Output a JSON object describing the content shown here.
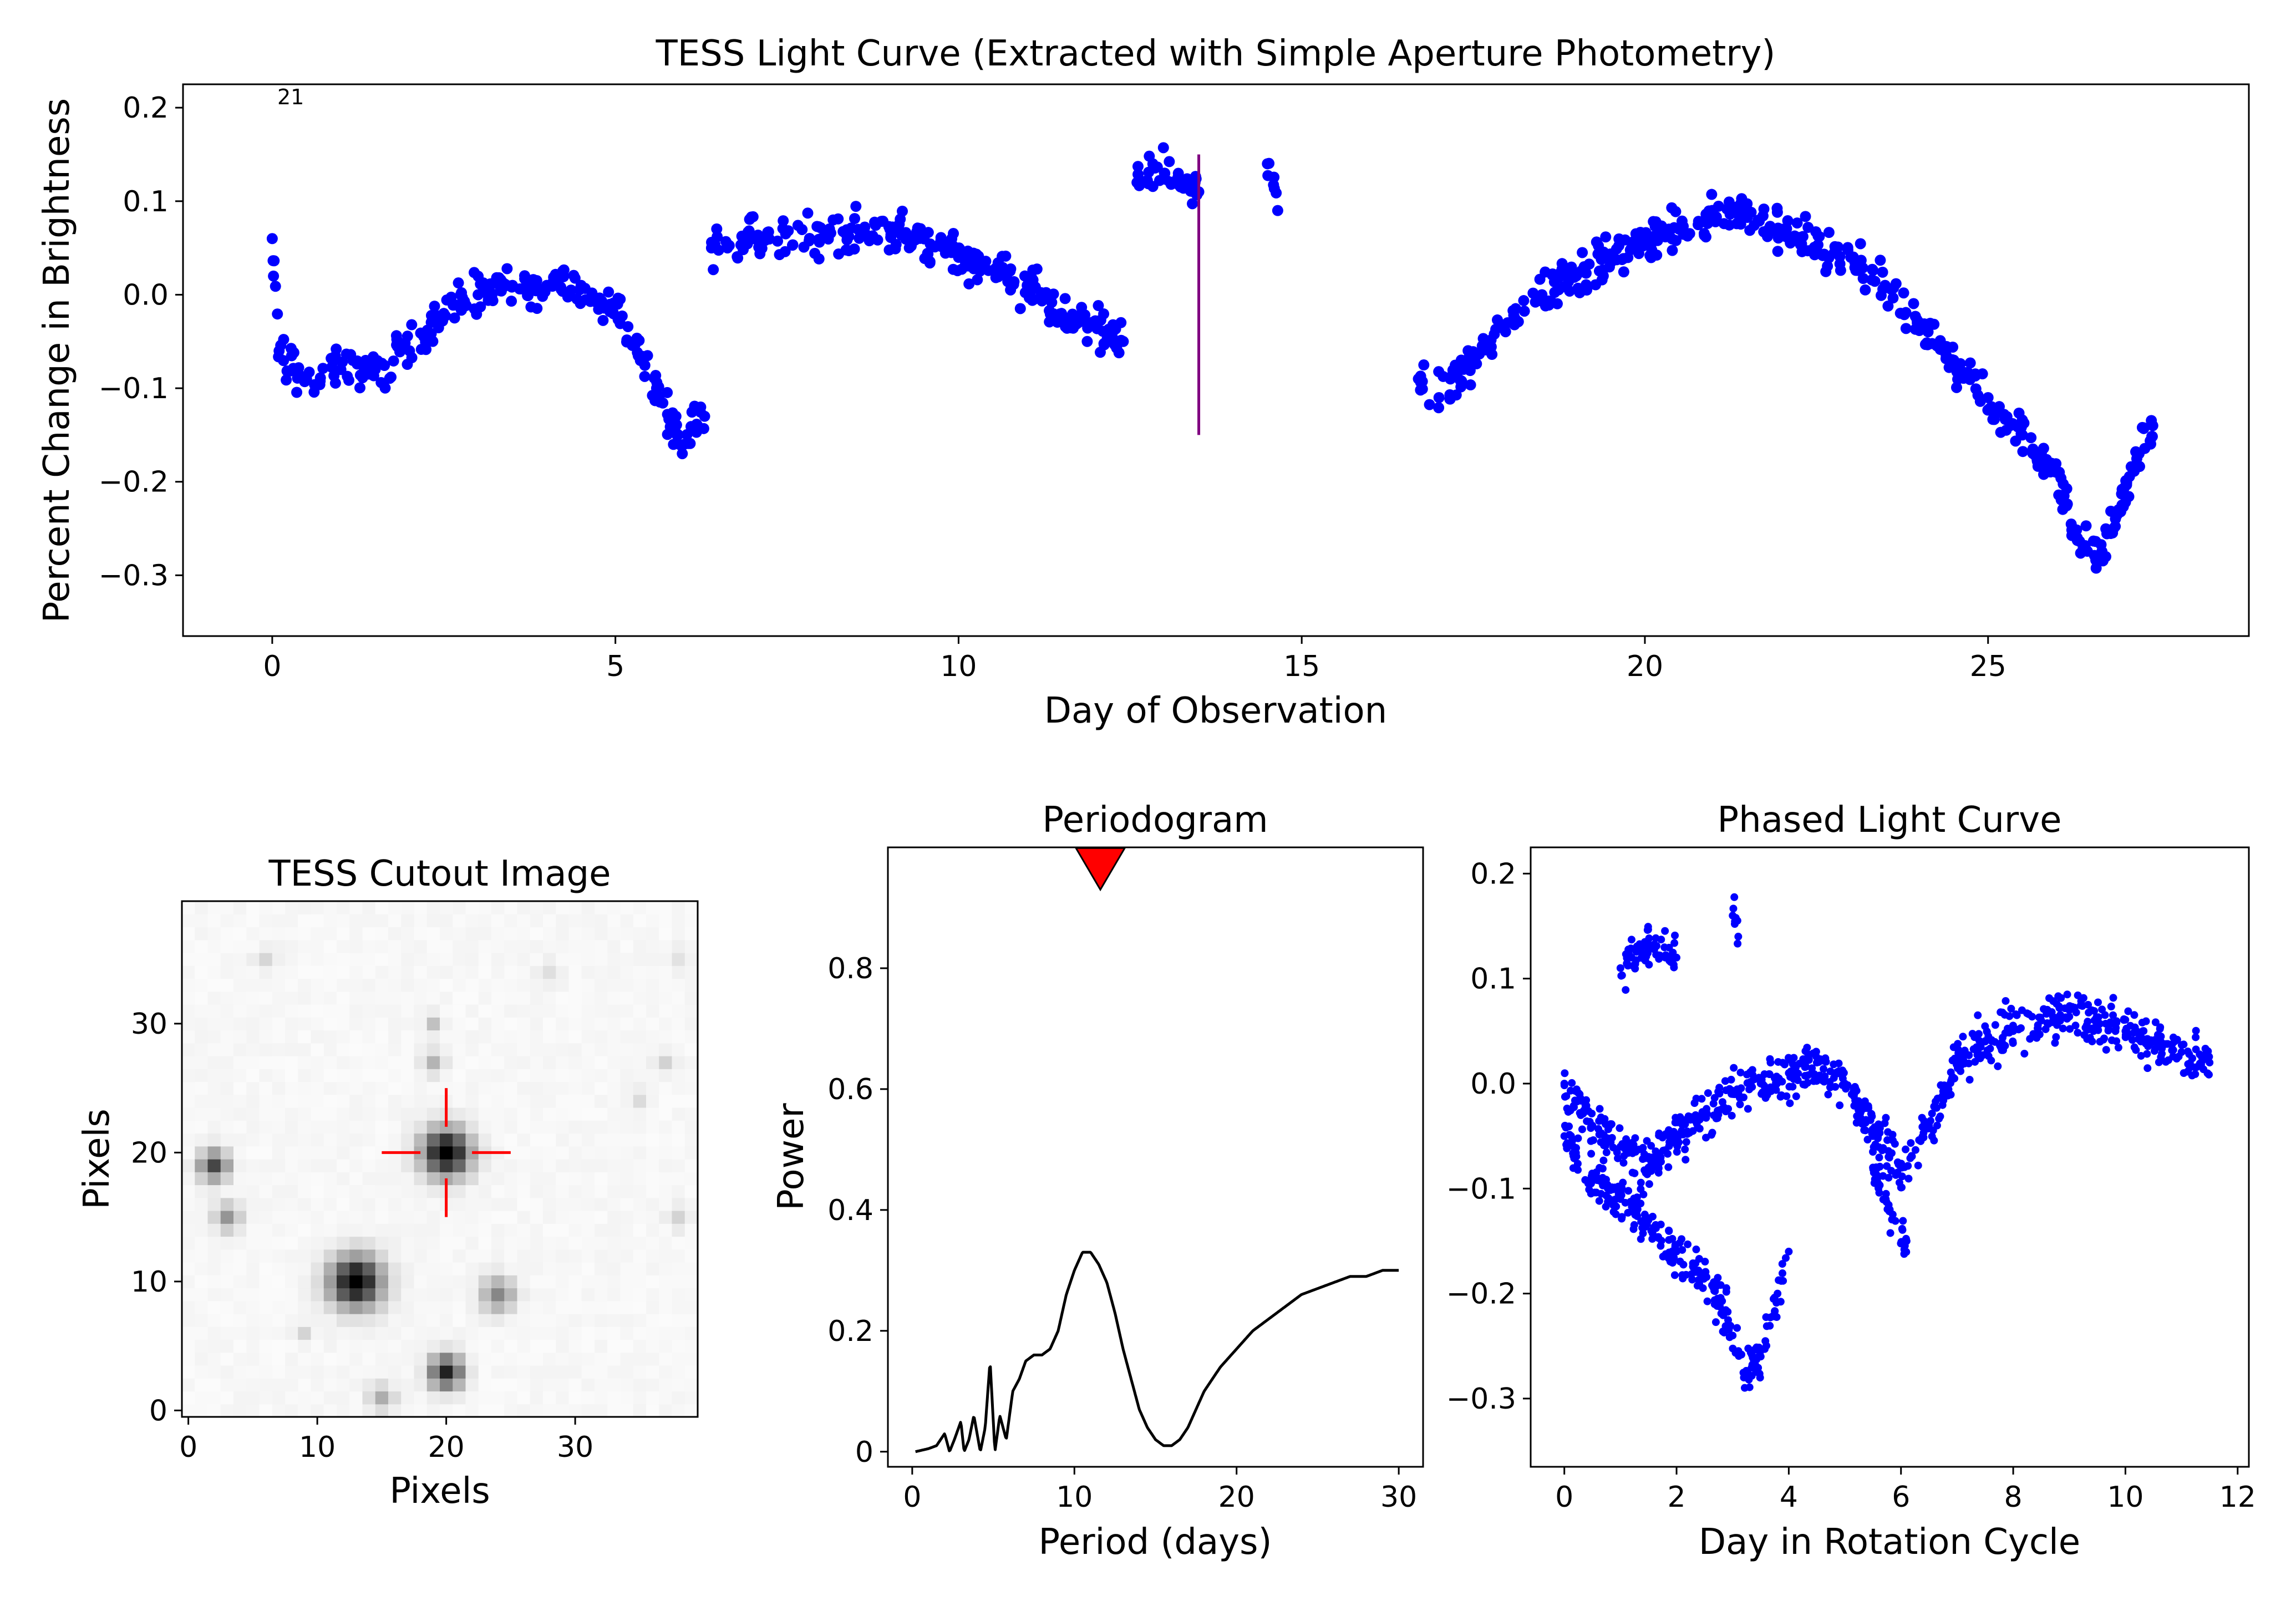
{
  "chart_data": [
    {
      "type": "scatter",
      "title": "TESS Light Curve (Extracted with Simple Aperture Photometry)",
      "xlabel": "Day of Observation",
      "ylabel": "Percent Change in Brightness",
      "xlim": [
        -1.3,
        28.8
      ],
      "ylim": [
        -0.365,
        0.225
      ],
      "xticks": [
        0,
        5,
        10,
        15,
        20,
        25
      ],
      "yticks": [
        0.2,
        0.1,
        0.0,
        -0.1,
        -0.2,
        -0.3
      ],
      "ytick_labels": [
        "0.2",
        "0.1",
        "0.0",
        "−0.1",
        "−0.2",
        "−0.3"
      ],
      "annotation": "21",
      "marker_color": "#0000ff",
      "segments": [
        {
          "x": [
            0.0,
            0.1,
            0.5,
            1.0,
            1.5,
            2.0,
            2.5,
            3.0,
            3.5,
            4.0,
            4.5,
            5.0,
            5.3,
            5.6,
            6.0,
            6.3
          ],
          "y": [
            0.06,
            -0.06,
            -0.09,
            -0.08,
            -0.08,
            -0.06,
            -0.02,
            0.0,
            0.01,
            0.01,
            0.01,
            -0.01,
            -0.05,
            -0.1,
            -0.16,
            -0.13
          ]
        },
        {
          "x": [
            6.4,
            7.0,
            8.0,
            9.0,
            10.0,
            11.0,
            11.5,
            12.0,
            12.4
          ],
          "y": [
            0.05,
            0.06,
            0.06,
            0.07,
            0.04,
            0.01,
            -0.02,
            -0.03,
            -0.05
          ]
        },
        {
          "x": [
            12.6,
            13.0,
            13.5
          ],
          "y": [
            0.12,
            0.13,
            0.11
          ]
        },
        {
          "x": [
            14.5,
            14.65
          ],
          "y": [
            0.14,
            0.09
          ]
        },
        {
          "x": [
            16.7,
            17.0,
            17.5,
            18.0,
            18.5,
            19.0,
            19.5,
            20.0,
            20.5,
            21.0,
            21.5,
            22.0,
            22.5,
            23.0,
            23.5,
            24.0,
            24.5,
            25.0,
            25.5,
            26.0,
            26.3,
            26.6,
            26.9,
            27.2,
            27.4
          ],
          "y": [
            -0.09,
            -0.11,
            -0.07,
            -0.03,
            0.0,
            0.02,
            0.04,
            0.06,
            0.07,
            0.08,
            0.09,
            0.07,
            0.05,
            0.04,
            0.01,
            -0.03,
            -0.07,
            -0.11,
            -0.15,
            -0.19,
            -0.26,
            -0.28,
            -0.23,
            -0.17,
            -0.14
          ]
        }
      ],
      "vline": {
        "x": 13.5,
        "y": [
          -0.15,
          0.15
        ],
        "color": "#800080"
      }
    },
    {
      "type": "heatmap",
      "title": "TESS Cutout Image",
      "xlabel": "Pixels",
      "ylabel": "Pixels",
      "xlim": [
        -0.5,
        39.5
      ],
      "ylim": [
        -0.5,
        39.5
      ],
      "xticks": [
        0,
        10,
        20,
        30
      ],
      "yticks": [
        0,
        10,
        20,
        30
      ],
      "colormap": "gray_r",
      "sources": [
        {
          "x": 20,
          "y": 20,
          "amp": 1.0,
          "sigma": 1.3
        },
        {
          "x": 13,
          "y": 10,
          "amp": 1.0,
          "sigma": 1.4
        },
        {
          "x": 20,
          "y": 3,
          "amp": 0.85,
          "sigma": 0.9
        },
        {
          "x": 2,
          "y": 19,
          "amp": 0.7,
          "sigma": 0.8
        },
        {
          "x": 3,
          "y": 15,
          "amp": 0.4,
          "sigma": 0.7
        },
        {
          "x": 24,
          "y": 9,
          "amp": 0.45,
          "sigma": 0.9
        },
        {
          "x": 15,
          "y": 1,
          "amp": 0.3,
          "sigma": 0.7
        },
        {
          "x": 19,
          "y": 27,
          "amp": 0.25,
          "sigma": 0.6
        },
        {
          "x": 19,
          "y": 30,
          "amp": 0.2,
          "sigma": 0.5
        },
        {
          "x": 37,
          "y": 27,
          "amp": 0.15,
          "sigma": 0.6
        },
        {
          "x": 38,
          "y": 15,
          "amp": 0.15,
          "sigma": 0.6
        },
        {
          "x": 6,
          "y": 35,
          "amp": 0.12,
          "sigma": 0.6
        },
        {
          "x": 9,
          "y": 6,
          "amp": 0.15,
          "sigma": 0.5
        },
        {
          "x": 28,
          "y": 34,
          "amp": 0.1,
          "sigma": 0.6
        },
        {
          "x": 35,
          "y": 24,
          "amp": 0.1,
          "sigma": 0.6
        },
        {
          "x": 38,
          "y": 35,
          "amp": 0.08,
          "sigma": 0.6
        }
      ],
      "crosshair": {
        "x": 20,
        "y": 20,
        "inner": 2,
        "outer": 5,
        "color": "#ff0000"
      }
    },
    {
      "type": "line",
      "title": "Periodogram",
      "xlabel": "Period (days)",
      "ylabel": "Power",
      "xlim": [
        -1.5,
        31.5
      ],
      "ylim": [
        -0.025,
        1.0
      ],
      "xticks": [
        0,
        10,
        20,
        30
      ],
      "yticks": [
        0.0,
        0.2,
        0.4,
        0.6,
        0.8
      ],
      "marker": {
        "x": 11.6,
        "y": 0.93,
        "shape": "triangle-down",
        "color": "#ff0000"
      },
      "series": [
        {
          "x": [
            0.2,
            1.0,
            1.5,
            2.0,
            2.3,
            2.6,
            3.0,
            3.2,
            3.5,
            3.8,
            4.2,
            4.5,
            4.8,
            5.1,
            5.4,
            5.8,
            6.2,
            6.6,
            7.0,
            7.5,
            8.0,
            8.5,
            9.0,
            9.5,
            10.0,
            10.5,
            11.0,
            11.5,
            12.0,
            12.5,
            13.0,
            13.5,
            14.0,
            14.5,
            15.0,
            15.5,
            16.0,
            16.5,
            17.0,
            17.5,
            18.0,
            19.0,
            20.0,
            21.0,
            22.0,
            23.0,
            24.0,
            25.0,
            26.0,
            27.0,
            28.0,
            29.0,
            30.0
          ],
          "y": [
            0.0,
            0.005,
            0.01,
            0.03,
            0.0,
            0.02,
            0.05,
            0.0,
            0.02,
            0.06,
            0.0,
            0.04,
            0.15,
            0.0,
            0.06,
            0.02,
            0.1,
            0.12,
            0.15,
            0.16,
            0.16,
            0.17,
            0.2,
            0.26,
            0.3,
            0.33,
            0.33,
            0.31,
            0.28,
            0.23,
            0.17,
            0.12,
            0.07,
            0.04,
            0.02,
            0.01,
            0.01,
            0.02,
            0.04,
            0.07,
            0.1,
            0.14,
            0.17,
            0.2,
            0.22,
            0.24,
            0.26,
            0.27,
            0.28,
            0.29,
            0.29,
            0.3,
            0.3
          ],
          "color": "#000000"
        }
      ]
    },
    {
      "type": "scatter",
      "title": "Phased Light Curve",
      "xlabel": "Day in Rotation Cycle",
      "ylabel": "",
      "xlim": [
        -0.6,
        12.2
      ],
      "ylim": [
        -0.365,
        0.225
      ],
      "xticks": [
        0,
        2,
        4,
        6,
        8,
        10,
        12
      ],
      "yticks": [
        0.2,
        0.1,
        0.0,
        -0.1,
        -0.2,
        -0.3
      ],
      "ytick_labels": [
        "0.2",
        "0.1",
        "0.0",
        "−0.1",
        "−0.2",
        "−0.3"
      ],
      "marker_color": "#0000ff",
      "segments": [
        {
          "x": [
            0.0,
            0.5,
            1.0,
            1.5,
            2.0,
            2.5,
            3.0,
            3.5,
            4.0,
            4.5,
            5.0,
            5.5,
            6.0,
            6.5,
            7.0,
            7.5,
            8.0,
            8.5,
            9.0,
            9.5,
            10.0,
            10.5,
            11.0,
            11.5
          ],
          "y": [
            0.0,
            -0.04,
            -0.06,
            -0.08,
            -0.05,
            -0.03,
            -0.01,
            0.0,
            0.01,
            0.02,
            0.0,
            -0.05,
            -0.08,
            -0.04,
            0.02,
            0.04,
            0.05,
            0.06,
            0.07,
            0.06,
            0.05,
            0.04,
            0.03,
            0.02
          ]
        },
        {
          "x": [
            0.0,
            0.5,
            1.0,
            1.5,
            2.0,
            2.5,
            3.0,
            3.2,
            3.5,
            3.8,
            4.0
          ],
          "y": [
            -0.05,
            -0.09,
            -0.11,
            -0.13,
            -0.16,
            -0.18,
            -0.24,
            -0.28,
            -0.26,
            -0.2,
            -0.16
          ]
        },
        {
          "x": [
            1.0,
            1.2,
            1.4,
            1.6,
            1.8,
            2.0
          ],
          "y": [
            0.11,
            0.12,
            0.13,
            0.13,
            0.12,
            0.12
          ]
        },
        {
          "x": [
            5.5,
            5.8,
            6.1
          ],
          "y": [
            -0.08,
            -0.12,
            -0.15
          ]
        },
        {
          "x": [
            3.0,
            3.1
          ],
          "y": [
            0.16,
            0.14
          ]
        }
      ]
    }
  ]
}
